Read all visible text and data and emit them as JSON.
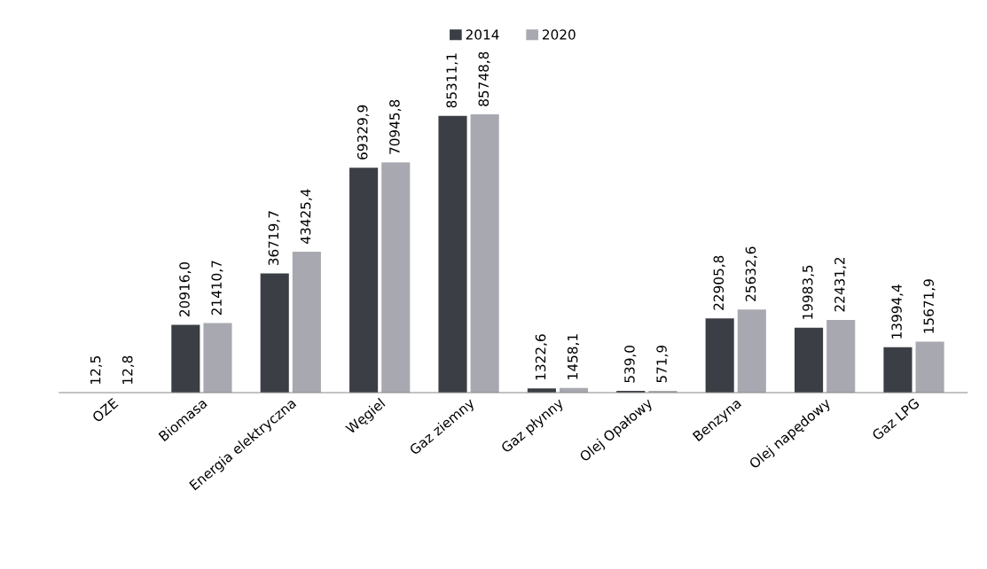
{
  "chart_data": {
    "type": "bar",
    "categories": [
      "OZE",
      "Biomasa",
      "Energia elektryczna",
      "Węgiel",
      "Gaz ziemny",
      "Gaz płynny",
      "Olej Opałowy",
      "Benzyna",
      "Olej napędowy",
      "Gaz LPG"
    ],
    "series": [
      {
        "name": "2014",
        "color": "#3b3f45",
        "values": [
          12.5,
          20916.0,
          36719.7,
          69329.9,
          85311.1,
          1322.6,
          539.0,
          22905.8,
          19983.5,
          13994.4
        ],
        "value_labels": [
          "12,5",
          "20916,0",
          "36719,7",
          "69329,9",
          "85311,1",
          "1322,6",
          "539,0",
          "22905,8",
          "19983,5",
          "13994,4"
        ]
      },
      {
        "name": "2020",
        "color": "#a8a8b0",
        "values": [
          12.8,
          21410.7,
          43425.4,
          70945.8,
          85748.8,
          1458.1,
          571.9,
          25632.6,
          22431.2,
          15671.9
        ],
        "value_labels": [
          "12,8",
          "21410,7",
          "43425,4",
          "70945,8",
          "85748,8",
          "1458,1",
          "571,9",
          "25632,6",
          "22431,2",
          "15671,9"
        ]
      }
    ],
    "legend": "top"
  }
}
